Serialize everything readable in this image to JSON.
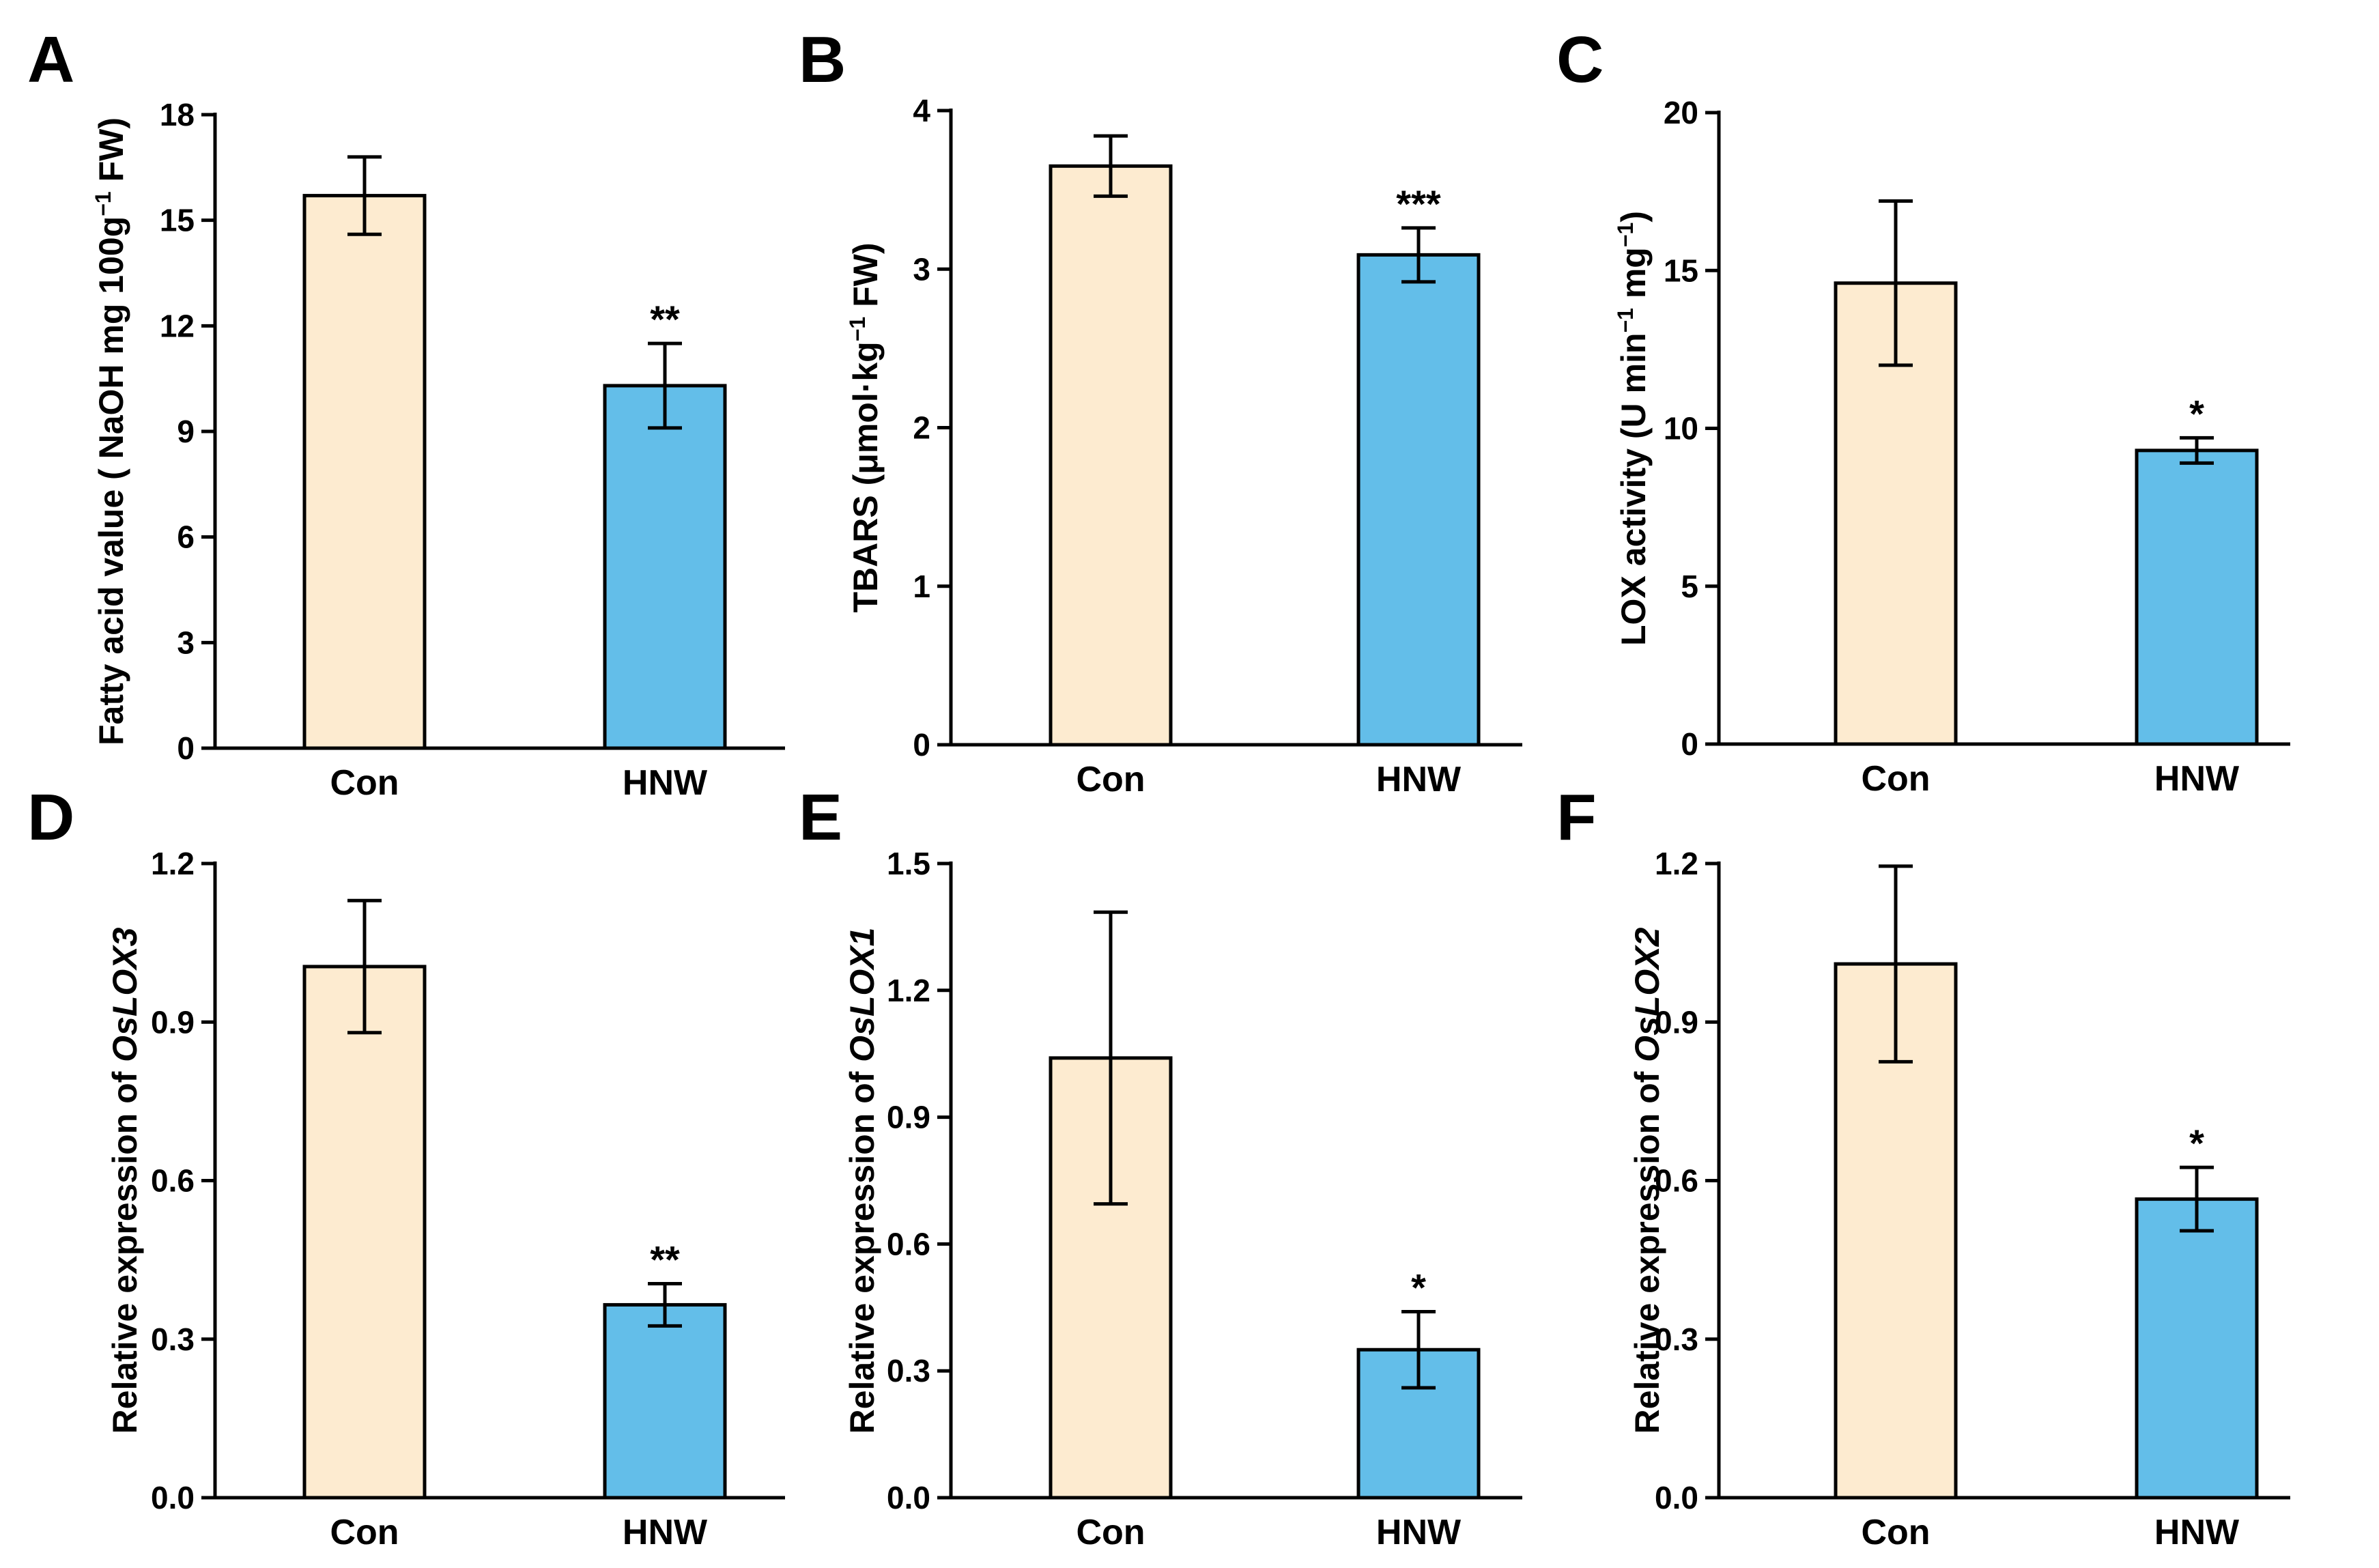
{
  "figure": {
    "control_color": "#FDEBD0",
    "treatment_color": "#63BEE9",
    "axis_color": "#000000"
  },
  "chart_data": [
    {
      "panel": "A",
      "type": "bar",
      "categories": [
        "Con",
        "HNW"
      ],
      "values": [
        15.7,
        10.3
      ],
      "errors": [
        1.1,
        1.2
      ],
      "significance": [
        "",
        "**"
      ],
      "ylabel_parts": [
        {
          "t": "Fatty acid value ( NaOH mg 100g"
        },
        {
          "t": "−1",
          "sup": true
        },
        {
          "t": " FW)"
        }
      ],
      "ylim": [
        0,
        18
      ],
      "yticks": [
        0,
        3,
        6,
        9,
        12,
        15,
        18
      ],
      "ytick_labels": [
        "0",
        "3",
        "6",
        "9",
        "12",
        "15",
        "18"
      ]
    },
    {
      "panel": "B",
      "type": "bar",
      "categories": [
        "Con",
        "HNW"
      ],
      "values": [
        3.65,
        3.09
      ],
      "errors": [
        0.19,
        0.17
      ],
      "significance": [
        "",
        "***"
      ],
      "ylabel_parts": [
        {
          "t": "TBARS (μmol·kg"
        },
        {
          "t": "−1",
          "sup": true
        },
        {
          "t": " FW)"
        }
      ],
      "ylim": [
        0,
        4
      ],
      "yticks": [
        0,
        1,
        2,
        3,
        4
      ],
      "ytick_labels": [
        "0",
        "1",
        "2",
        "3",
        "4"
      ]
    },
    {
      "panel": "C",
      "type": "bar",
      "categories": [
        "Con",
        "HNW"
      ],
      "values": [
        14.6,
        9.3
      ],
      "errors": [
        2.6,
        0.4
      ],
      "significance": [
        "",
        "*"
      ],
      "ylabel_parts": [
        {
          "t": "LOX activity (U min"
        },
        {
          "t": "−1",
          "sup": true
        },
        {
          "t": " mg"
        },
        {
          "t": "−1",
          "sup": true
        },
        {
          "t": ")"
        }
      ],
      "ylim": [
        0,
        20
      ],
      "yticks": [
        0,
        5,
        10,
        15,
        20
      ],
      "ytick_labels": [
        "0",
        "5",
        "10",
        "15",
        "20"
      ]
    },
    {
      "panel": "D",
      "type": "bar",
      "categories": [
        "Con",
        "HNW"
      ],
      "values": [
        1.005,
        0.365
      ],
      "errors": [
        0.125,
        0.04
      ],
      "significance": [
        "",
        "**"
      ],
      "ylabel_parts": [
        {
          "t": "Relative expression of "
        },
        {
          "t": "OsLOX3",
          "italic": true
        }
      ],
      "ylim": [
        0,
        1.2
      ],
      "yticks": [
        0,
        0.3,
        0.6,
        0.9,
        1.2
      ],
      "ytick_labels": [
        "0.0",
        "0.3",
        "0.6",
        "0.9",
        "1.2"
      ]
    },
    {
      "panel": "E",
      "type": "bar",
      "categories": [
        "Con",
        "HNW"
      ],
      "values": [
        1.04,
        0.35
      ],
      "errors": [
        0.345,
        0.09
      ],
      "significance": [
        "",
        "*"
      ],
      "ylabel_parts": [
        {
          "t": "Relative expression of "
        },
        {
          "t": "OsLOX1",
          "italic": true
        }
      ],
      "ylim": [
        0,
        1.5
      ],
      "yticks": [
        0,
        0.3,
        0.6,
        0.9,
        1.2,
        1.5
      ],
      "ytick_labels": [
        "0.0",
        "0.3",
        "0.6",
        "0.9",
        "1.2",
        "1.5"
      ]
    },
    {
      "panel": "F",
      "type": "bar",
      "categories": [
        "Con",
        "HNW"
      ],
      "values": [
        1.01,
        0.565
      ],
      "errors": [
        0.185,
        0.06
      ],
      "significance": [
        "",
        "*"
      ],
      "ylabel_parts": [
        {
          "t": "Relative expression of "
        },
        {
          "t": "OsLOX2",
          "italic": true
        }
      ],
      "ylim": [
        0,
        1.2
      ],
      "yticks": [
        0,
        0.3,
        0.6,
        0.9,
        1.2
      ],
      "ytick_labels": [
        "0.0",
        "0.3",
        "0.6",
        "0.9",
        "1.2"
      ]
    }
  ]
}
